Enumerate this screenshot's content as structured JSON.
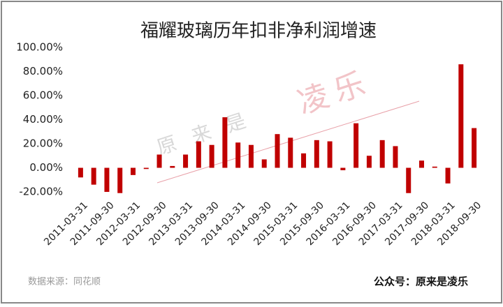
{
  "chart_data": {
    "type": "bar",
    "title": "福耀玻璃历年扣非净利润增速",
    "categories": [
      "2011-03-31",
      null,
      "2011-09-30",
      null,
      "2012-03-31",
      null,
      "2012-09-30",
      null,
      "2013-03-31",
      null,
      "2013-09-30",
      null,
      "2014-03-31",
      null,
      "2014-09-30",
      null,
      "2015-03-31",
      null,
      "2015-09-30",
      null,
      "2016-03-31",
      null,
      "2016-09-30",
      null,
      "2017-03-31",
      null,
      "2017-09-30",
      null,
      "2018-03-31",
      null,
      "2018-09-30"
    ],
    "values": [
      -8,
      -14,
      -20,
      -21,
      -6,
      -1,
      11,
      1.5,
      11,
      22,
      19,
      42,
      21,
      19,
      7,
      28,
      25,
      12,
      23,
      22,
      -2,
      37,
      10,
      23,
      18,
      -21,
      6,
      1,
      -13,
      86,
      33
    ],
    "color": "#c00000",
    "ylim": [
      -20,
      100
    ],
    "yticks": [
      {
        "value": -20,
        "label": "-20.00%"
      },
      {
        "value": 0,
        "label": "0.00%"
      },
      {
        "value": 20,
        "label": "20.00%"
      },
      {
        "value": 40,
        "label": "40.00%"
      },
      {
        "value": 60,
        "label": "60.00%"
      },
      {
        "value": 80,
        "label": "80.00%"
      },
      {
        "value": 100,
        "label": "100.00%"
      }
    ],
    "grid": false,
    "watermark": {
      "left": "原来是",
      "right": "凌乐"
    },
    "source": "数据来源：同花顺",
    "account": "公众号：原来是凌乐"
  }
}
